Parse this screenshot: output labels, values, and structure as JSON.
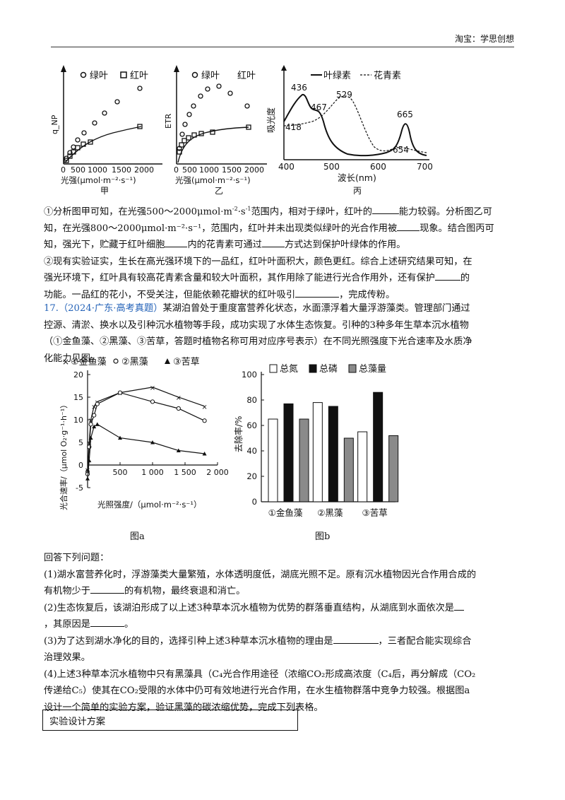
{
  "header": {
    "brand": "淘宝：学思创想"
  },
  "fig_jia": {
    "legend_green": "绿叶",
    "legend_red": "红叶",
    "ylabel": "q_NP",
    "xticks": [
      "0",
      "500",
      "1000",
      "1500",
      "2000"
    ],
    "xlabel": "光强(μmol·m⁻²·s⁻¹)",
    "caption": "甲"
  },
  "fig_yi": {
    "legend_green": "绿叶",
    "legend_red": "红叶",
    "ylabel": "ETR",
    "xticks": [
      "0",
      "500",
      "1000",
      "1500",
      "2000"
    ],
    "xlabel": "光强(μmol·m⁻²·s⁻¹)",
    "caption": "乙"
  },
  "fig_bing": {
    "legend_chl": "叶绿素",
    "legend_ant": "花青素",
    "ylabel": "吸光度",
    "peaks": [
      "436",
      "467",
      "418",
      "529",
      "665",
      "654"
    ],
    "xticks": [
      "400",
      "500",
      "600",
      "700"
    ],
    "xlabel": "波长(nm)",
    "caption": "丙"
  },
  "q16": {
    "p1a": "①分析图甲可知，在光强500～2000μmol·m",
    "p1a_sup": "-2",
    "p1a_mid": "·s",
    "p1a_sup2": "-1",
    "p1a_end": "范围内，相对于绿叶，红叶的",
    "p1b": "能力较弱。分析图乙可",
    "p2": "知，在光强800～2000μmol·m⁻²·s⁻¹，范围内，红叶并未出现类似绿叶的光合作用被",
    "p2b": "现象。结合图丙可",
    "p3a": "知，强光下，贮藏于红叶细胞",
    "p3b": "内的花青素可通过",
    "p3c": "方式达到保护叶绿体的作用。",
    "p4": "②现有实验证实，生长在高光强环境下的一品红，红叶叶面积大，颜色更红。综合上述研究结果可知，在",
    "p5a": "强光环境下，红叶具有较高花青素含量和较大叶面积，其作用除了能进行光合作用外，还有保护",
    "p5b": "的",
    "p6a": "功能。一品红的花小，不受关注，但能依赖花瓣状的红叶吸引",
    "p6b": "，完成传粉。"
  },
  "q17": {
    "num": "17.",
    "source": "（2024·广东·高考真题）",
    "l1": "某湖泊曾处于重度富营养化状态，水面漂浮着大量浮游藻类。管理部门通过",
    "l2": "控源、清淤、换水以及引种沉水植物等手段，成功实现了水体生态恢复。引种的3种多年生草本沉水植物",
    "l3": "（①金鱼藻、②黑藻、③苦草，答题时植物名称可用对应序号表示）在不同光照强度下光合速率及水质净",
    "l4": "化能力见图。"
  },
  "fig_a": {
    "legend": [
      "①金鱼藻",
      "②黑藻",
      "③苦草"
    ],
    "ylabel": "光合速率/（μmol O₂·g⁻¹·h⁻¹）",
    "xlabel": "光照强度/（μmol·m⁻²·s⁻¹）",
    "caption": "图a",
    "yticks": [
      "-5",
      "0",
      "5",
      "10",
      "15",
      "20"
    ],
    "xticks": [
      "0",
      "500",
      "1 000",
      "1 500",
      "2 000"
    ]
  },
  "chart_data": [
    {
      "type": "bar",
      "title": "",
      "categories": [
        "①金鱼藻",
        "②黑藻",
        "③苦草"
      ],
      "series": [
        {
          "name": "总氮",
          "values": [
            65,
            78,
            55
          ],
          "color": "#ffffff"
        },
        {
          "name": "总磷",
          "values": [
            77,
            75,
            86
          ],
          "color": "#111111"
        },
        {
          "name": "总藻量",
          "values": [
            65,
            50,
            52
          ],
          "color": "#8a8a8a"
        }
      ],
      "ylabel": "去除率/%",
      "ylim": [
        0,
        100
      ],
      "yticks": [
        "0",
        "20",
        "40",
        "60",
        "80",
        "100"
      ],
      "caption": "图b"
    },
    {
      "type": "line",
      "x_units": "μmol·m⁻²·s⁻¹",
      "series": [
        {
          "name": "①金鱼藻",
          "x": [
            0,
            25,
            50,
            100,
            150,
            500,
            1000,
            1400,
            1800
          ],
          "y": [
            -1,
            5,
            10,
            13,
            14,
            16,
            17.2,
            15,
            13
          ]
        },
        {
          "name": "②黑藻",
          "x": [
            0,
            25,
            50,
            100,
            150,
            500,
            1000,
            1400,
            1800
          ],
          "y": [
            -2,
            4,
            9,
            11,
            13.5,
            16,
            14,
            12.5,
            9.8
          ]
        },
        {
          "name": "③苦草",
          "x": [
            0,
            25,
            50,
            100,
            150,
            500,
            1000,
            1400,
            1800
          ],
          "y": [
            -3,
            1,
            6,
            8.5,
            9,
            6,
            5,
            3.2,
            2.5
          ]
        }
      ],
      "xlim": [
        0,
        2000
      ],
      "ylim": [
        -5,
        20
      ]
    }
  ],
  "questions": {
    "intro": "回答下列问题：",
    "q1a": "(1)湖水富营养化时，浮游藻类大量繁殖，水体透明度低，湖底光照不足。原有沉水植物因光合作用合成的",
    "q1b": "有机物少于",
    "q1c": "的有机物，最终衰退和消亡。",
    "q2a": "(2)生态恢复后，该湖泊形成了以上述3种草本沉水植物为优势的群落垂直结构，从湖底到水面依次是",
    "q2b": "，其原因是",
    "q2c": "。",
    "q3a": "(3)为了达到湖水净化的目的，选择引种上述3种草本沉水植物的理由是",
    "q3b": "，三者配合能实现综合",
    "q3c": "治理效果。",
    "q4a": "(4)上述3种草本沉水植物中只有黑藻具（C₄光合作用途径（浓缩CO₂形成高浓度（C₄后，再分解成（CO₂",
    "q4b": "传递给C₅）使其在CO₂受限的水体中仍可有效地进行光合作用，在水生植物群落中竞争力较强。根据图a",
    "q4c": "设计一个简单的实验方案，验证黑藻的碳浓缩优势，完成下列表格。"
  },
  "table": {
    "header": "实验设计方案"
  }
}
